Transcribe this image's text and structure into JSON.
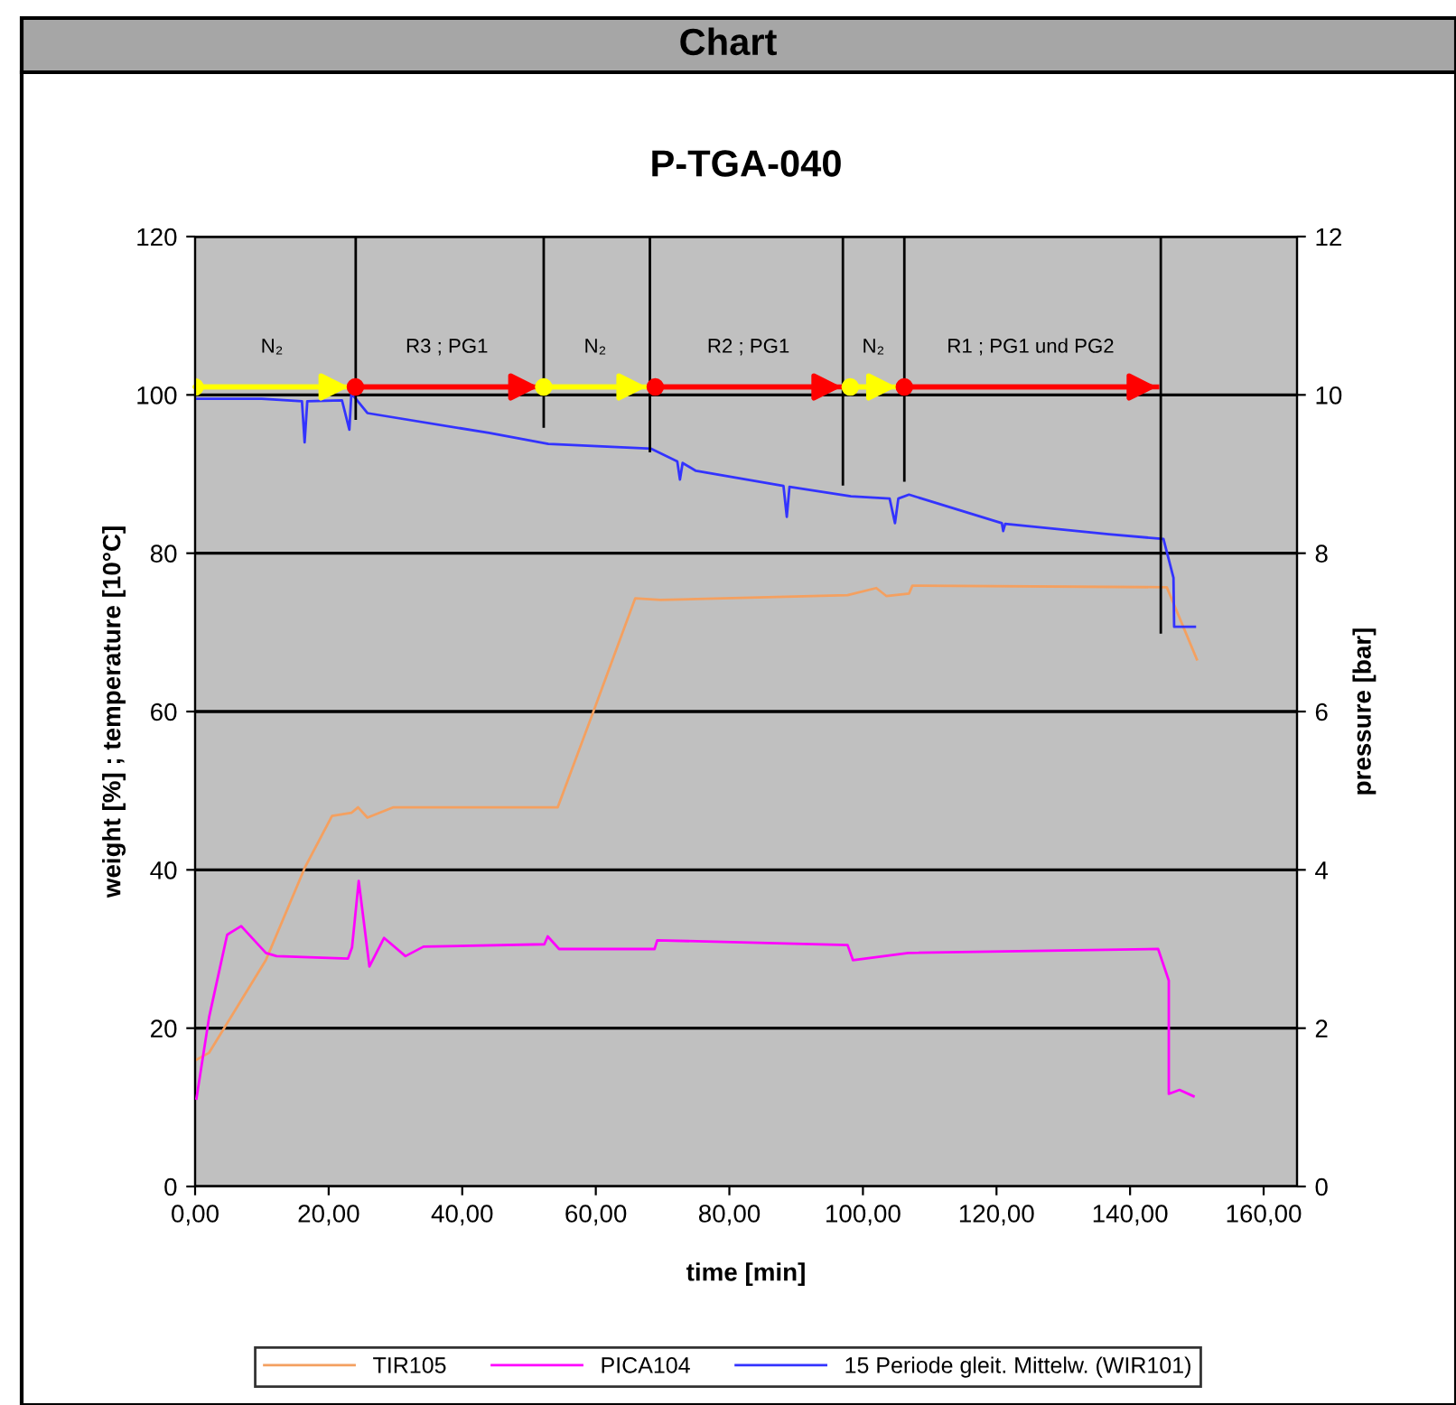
{
  "chart_data": {
    "type": "line",
    "title": "P-TGA-040",
    "xlabel": "time [min]",
    "ylabel": "weight [%] ; temperature [10°C]",
    "y2label": "pressure [bar]",
    "xlim": [
      0,
      165
    ],
    "xticks": [
      {
        "value": 0,
        "label": "0,00"
      },
      {
        "value": 20,
        "label": "20,00"
      },
      {
        "value": 40,
        "label": "40,00"
      },
      {
        "value": 60,
        "label": "60,00"
      },
      {
        "value": 80,
        "label": "80,00"
      },
      {
        "value": 100,
        "label": "100,00"
      },
      {
        "value": 120,
        "label": "120,00"
      },
      {
        "value": 140,
        "label": "140,00"
      },
      {
        "value": 160,
        "label": "160,00"
      }
    ],
    "ylim": [
      0,
      120
    ],
    "yticks": [
      0,
      20,
      40,
      60,
      80,
      100,
      120
    ],
    "y2lim": [
      0,
      12
    ],
    "y2ticks": [
      0,
      2,
      4,
      6,
      8,
      10,
      12
    ],
    "grid": "y",
    "legend": "bottom",
    "annotations": [
      "Chart",
      "N₂",
      "R3 ; PG1",
      "N₂",
      "R2 ; PG1",
      "N₂",
      "R1 ; PG1 und PG2"
    ],
    "series": [
      {
        "name": "TIR105",
        "color": "#f4a060",
        "x": [
          0.2,
          2.1,
          10.6,
          16.5,
          20.5,
          23.4,
          24.4,
          25.8,
          29.7,
          54.3,
          59.6,
          65.9,
          69.7,
          97.7,
          102,
          103.5,
          106.9,
          107.4,
          145.5,
          150
        ],
        "values": [
          16.0,
          16.9,
          28.6,
          40.4,
          46.8,
          47.2,
          47.9,
          46.6,
          47.9,
          47.9,
          59.9,
          74.3,
          74.1,
          74.7,
          75.6,
          74.6,
          74.9,
          75.9,
          75.7,
          66.6
        ]
      },
      {
        "name": "PICA104",
        "color": "#ff00ff",
        "axis": "y2",
        "x": [
          0.2,
          2.1,
          4.8,
          6.9,
          10.6,
          12.2,
          22.9,
          23.5,
          24.5,
          26.1,
          28.3,
          31.5,
          34.2,
          52.3,
          52.8,
          54.5,
          68.8,
          69.2,
          97.7,
          98.5,
          106.8,
          144.2,
          145.8,
          145.8,
          147.4,
          149.5
        ],
        "values": [
          1.11,
          2.14,
          3.18,
          3.29,
          2.95,
          2.91,
          2.88,
          3.02,
          3.86,
          2.78,
          3.14,
          2.91,
          3.03,
          3.06,
          3.16,
          3.0,
          3.0,
          3.11,
          3.05,
          2.86,
          2.95,
          3.0,
          2.6,
          1.17,
          1.22,
          1.14
        ]
      },
      {
        "name": "15 Periode gleit. Mittelw. (WIR101)",
        "color": "#3333ff",
        "x": [
          0.3,
          10,
          16,
          16.4,
          16.8,
          22,
          23.1,
          23.4,
          25.8,
          44,
          52.9,
          68.3,
          72.2,
          72.6,
          73,
          75,
          88.1,
          88.6,
          89,
          98.2,
          104,
          104.8,
          105.3,
          106.9,
          120.8,
          121,
          121.3,
          136.8,
          145,
          146.5,
          146.6,
          149.7
        ],
        "values": [
          99.5,
          99.5,
          99.2,
          94.0,
          99.2,
          99.3,
          95.6,
          100.2,
          97.7,
          95.2,
          93.8,
          93.2,
          91.6,
          89.3,
          91.4,
          90.4,
          88.5,
          84.6,
          88.4,
          87.2,
          86.9,
          83.8,
          86.9,
          87.4,
          83.8,
          82.8,
          83.7,
          82.4,
          81.8,
          76.9,
          70.7,
          70.7
        ]
      },
      {
        "color": "#ffff00",
        "marker": "circle",
        "x": [
          0,
          23
        ],
        "values": [
          101,
          101
        ]
      },
      {
        "color": "#ff0000",
        "marker": "circle",
        "x": [
          24.0,
          51.4
        ],
        "values": [
          101,
          101
        ]
      },
      {
        "color": "#ffff00",
        "marker": "circle",
        "x": [
          52.2,
          67.6
        ],
        "values": [
          101,
          101
        ]
      },
      {
        "color": "#ff0000",
        "marker": "circle",
        "x": [
          68.9,
          96.8
        ],
        "values": [
          101,
          101
        ]
      },
      {
        "color": "#ffff00",
        "marker": "circle",
        "x": [
          98.1,
          105
        ],
        "values": [
          101,
          101
        ]
      },
      {
        "color": "#ff0000",
        "marker": "circle",
        "x": [
          106.2,
          144
        ],
        "values": [
          101,
          101
        ]
      },
      {
        "color": "#000000",
        "x": [
          24.05,
          24.05
        ],
        "values": [
          120,
          97
        ]
      },
      {
        "color": "#000000",
        "x": [
          52.2,
          52.2
        ],
        "values": [
          120,
          96
        ]
      },
      {
        "color": "#000000",
        "x": [
          68.1,
          68.1
        ],
        "values": [
          120,
          92.9
        ]
      },
      {
        "color": "#000000",
        "x": [
          97.0,
          97.0
        ],
        "values": [
          120,
          88.7
        ]
      },
      {
        "color": "#000000",
        "x": [
          106.2,
          106.2
        ],
        "values": [
          120,
          89.2
        ]
      },
      {
        "color": "#000000",
        "x": [
          144.6,
          144.6
        ],
        "values": [
          120,
          70
        ]
      }
    ]
  }
}
